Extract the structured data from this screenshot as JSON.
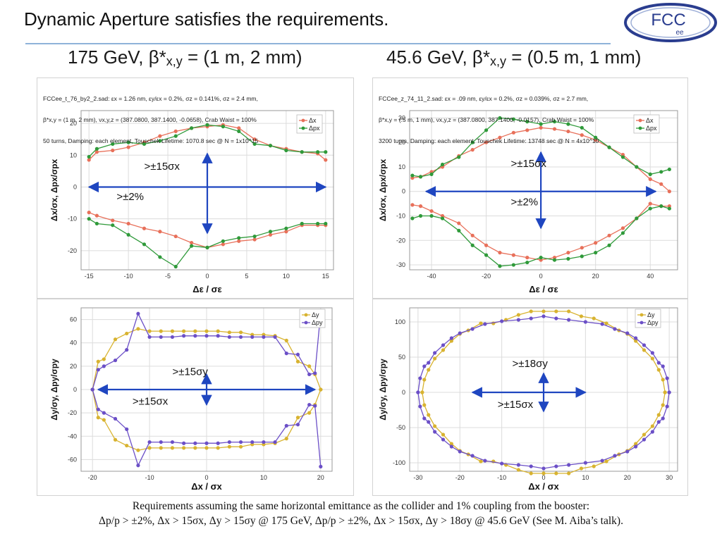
{
  "slide": {
    "title": "Dynamic Aperture satisfies the requirements.",
    "logo": {
      "main": "FCC",
      "sub": "ee"
    },
    "left_heading": {
      "pre": "175 GeV, β*",
      "sub": "x,y",
      "post": " = (1 m, 2 mm)"
    },
    "right_heading": {
      "pre": "45.6 GeV, β*",
      "sub": "x,y",
      "post": " = (0.5 m, 1 mm)"
    },
    "caption_line1": "Requirements assuming the same horizontal emittance as the collider and 1% coupling from the booster:",
    "caption_line2": "Δp/p > ±2%, Δx > 15σx, Δy > 15σy @ 175 GeV, Δp/p > ±2%, Δx > 15σx, Δy > 18σy @ 45.6 GeV (See M. Aiba’s talk).",
    "accent_color": "#1f46c0",
    "red_color": "#e8705a",
    "green_color": "#2f9a3a",
    "gold_color": "#d8b330",
    "purple_color": "#6b4fc7"
  },
  "chart_data": [
    {
      "type": "scatter",
      "name_id": "top-left",
      "header": [
        "FCCee_t_76_by2_2.sad: εx = 1.26 nm, εy/εx = 0.2%, σz = 0.141%, σz = 2.4 mm,",
        "β*x,y = (1 m, 2 mm), νx,y,z = (387.0800, 387.1400, -0.0658), Crab Waist = 100%",
        "50 turns, Damping: each element, Touschek Lifetime: 1070.8 sec @ N = 1x10^15"
      ],
      "xlabel": "Δε / σε",
      "ylabel": "Δx/σx, Δpx/σpx",
      "xlim": [
        -16,
        16
      ],
      "ylim": [
        -26,
        24
      ],
      "xticks": [
        -15,
        -10,
        -5,
        0,
        5,
        10,
        15
      ],
      "yticks": [
        -20,
        -10,
        0,
        10,
        20
      ],
      "legend": [
        "Δx",
        "Δpx"
      ],
      "series": [
        {
          "name": "Δx",
          "color": "red",
          "x": [
            -15,
            -14,
            -12,
            -10,
            -8,
            -6,
            -4,
            -2,
            0,
            2,
            4,
            6,
            8,
            10,
            12,
            14,
            15
          ],
          "y": [
            8.5,
            11,
            11.5,
            12.5,
            14,
            16,
            17.5,
            18.5,
            19,
            19.5,
            18.5,
            15,
            13,
            12,
            11,
            10.5,
            8.5
          ]
        },
        {
          "name": "Δx",
          "color": "red",
          "x": [
            -15,
            -14,
            -12,
            -10,
            -8,
            -6,
            -4,
            -2,
            0,
            2,
            4,
            6,
            8,
            10,
            12,
            14,
            15
          ],
          "y": [
            -8,
            -9,
            -10.5,
            -11.5,
            -13,
            -14,
            -15.5,
            -17.5,
            -19,
            -18,
            -17,
            -16.5,
            -15,
            -14,
            -12,
            -12,
            -12
          ]
        },
        {
          "name": "Δpx",
          "color": "green",
          "x": [
            -15,
            -14,
            -12,
            -10,
            -8,
            -6,
            -4,
            -2,
            0,
            2,
            4,
            6,
            8,
            10,
            12,
            14,
            15
          ],
          "y": [
            9.5,
            12,
            13.5,
            14,
            13.5,
            14.5,
            16,
            18.5,
            19.5,
            19,
            17.5,
            13.5,
            13,
            11.5,
            11,
            11,
            11
          ]
        },
        {
          "name": "Δpx",
          "color": "green",
          "x": [
            -15,
            -14,
            -12,
            -10,
            -8,
            -6,
            -4,
            -2,
            0,
            2,
            4,
            6,
            8,
            10,
            12,
            14,
            15
          ],
          "y": [
            -10,
            -11.5,
            -12,
            -15,
            -18,
            -22,
            -25,
            -18.5,
            -19,
            -17,
            -16,
            -15.5,
            -14,
            -13,
            -11.5,
            -11.5,
            -11.5
          ]
        }
      ],
      "annotations": [
        ">±15σx",
        ">±2%"
      ]
    },
    {
      "type": "scatter",
      "name_id": "top-right",
      "header": [
        "FCCee_z_74_11_2.sad: εx = .09 nm, εy/εx = 0.2%, σz = 0.039%, σz = 2.7 mm,",
        "β*x,y = (.5 m, 1 mm), νx,y,z = (387.0800, 387.1400, -0.0157), Crab Waist = 100%",
        "3200 turns, Damping: each element, Touschek Lifetime: 13748 sec @ N = 4x10^10"
      ],
      "xlabel": "Δε / σε",
      "ylabel": "Δx/σx, Δpx/σpx",
      "xlim": [
        -48,
        50
      ],
      "ylim": [
        -32,
        33
      ],
      "xticks": [
        -40,
        -20,
        0,
        20,
        40
      ],
      "yticks": [
        -30,
        -20,
        -10,
        0,
        10,
        20,
        30
      ],
      "legend": [
        "Δx",
        "Δpx"
      ],
      "series": [
        {
          "name": "Δx",
          "color": "red",
          "x": [
            -47,
            -44,
            -40,
            -36,
            -30,
            -25,
            -20,
            -15,
            -10,
            -5,
            0,
            5,
            10,
            15,
            20,
            25,
            30,
            35,
            40,
            44,
            47
          ],
          "y": [
            5.5,
            6,
            8,
            10,
            14.5,
            17,
            20,
            22,
            24,
            25,
            26,
            25.5,
            24.5,
            23,
            21,
            18,
            15,
            10,
            5,
            3,
            0
          ]
        },
        {
          "name": "Δx",
          "color": "red",
          "x": [
            -47,
            -44,
            -40,
            -36,
            -30,
            -25,
            -20,
            -15,
            -10,
            -5,
            0,
            5,
            10,
            15,
            20,
            25,
            30,
            35,
            40,
            44,
            47
          ],
          "y": [
            -5.5,
            -6,
            -8,
            -10,
            -13,
            -18,
            -22,
            -25,
            -26,
            -27,
            -28,
            -27,
            -25,
            -23,
            -21,
            -18,
            -15,
            -11,
            -5,
            -6,
            -6
          ]
        },
        {
          "name": "Δpx",
          "color": "green",
          "x": [
            -47,
            -44,
            -40,
            -36,
            -30,
            -25,
            -20,
            -15,
            -10,
            -5,
            0,
            5,
            10,
            15,
            20,
            25,
            30,
            35,
            40,
            44,
            47
          ],
          "y": [
            6.5,
            6,
            7,
            11,
            14,
            20,
            25,
            30,
            29.5,
            28.5,
            27.5,
            28.5,
            27.5,
            26,
            22,
            18,
            14,
            10,
            7,
            8,
            9
          ]
        },
        {
          "name": "Δpx",
          "color": "green",
          "x": [
            -47,
            -44,
            -40,
            -36,
            -30,
            -25,
            -20,
            -15,
            -10,
            -5,
            0,
            5,
            10,
            15,
            20,
            25,
            30,
            35,
            40,
            44,
            47
          ],
          "y": [
            -11,
            -10,
            -10,
            -11,
            -16,
            -22,
            -26,
            -30.5,
            -30,
            -29,
            -27,
            -28,
            -27.5,
            -26.5,
            -25,
            -22,
            -17,
            -11,
            -7,
            -6,
            -7
          ]
        }
      ],
      "annotations": [
        ">±15σx",
        ">±2%"
      ]
    },
    {
      "type": "scatter",
      "name_id": "bottom-left",
      "xlabel": "Δx / σx",
      "ylabel": "Δy/σy, Δpy/σpy",
      "xlim": [
        -22,
        22
      ],
      "ylim": [
        -70,
        70
      ],
      "xticks": [
        -20,
        -10,
        0,
        10,
        20
      ],
      "yticks": [
        -60,
        -40,
        -20,
        0,
        20,
        40,
        60
      ],
      "legend": [
        "Δy",
        "Δpy"
      ],
      "series": [
        {
          "name": "Δy",
          "color": "gold",
          "x": [
            -20,
            -19,
            -18,
            -16,
            -14,
            -12,
            -10,
            -8,
            -6,
            -4,
            -2,
            0,
            2,
            4,
            6,
            8,
            10,
            12,
            14,
            16,
            18,
            19,
            20
          ],
          "y": [
            0,
            24,
            26,
            43,
            48,
            52,
            50,
            50,
            50,
            50,
            50,
            50,
            50,
            49,
            49,
            47,
            47,
            46,
            42,
            24,
            20,
            13,
            0
          ]
        },
        {
          "name": "Δy",
          "color": "gold",
          "x": [
            -20,
            -19,
            -18,
            -16,
            -14,
            -12,
            -10,
            -8,
            -6,
            -4,
            -2,
            0,
            2,
            4,
            6,
            8,
            10,
            12,
            14,
            16,
            18,
            19,
            20
          ],
          "y": [
            0,
            -24,
            -26,
            -43,
            -48,
            -52,
            -50,
            -50,
            -50,
            -50,
            -50,
            -50,
            -50,
            -49,
            -49,
            -47,
            -47,
            -46,
            -42,
            -24,
            -20,
            -13,
            0
          ]
        },
        {
          "name": "Δpy",
          "color": "purple",
          "x": [
            -20,
            -19,
            -18,
            -16,
            -14,
            -12,
            -10,
            -8,
            -6,
            -4,
            -2,
            0,
            2,
            4,
            6,
            8,
            10,
            12,
            14,
            16,
            18,
            19,
            20
          ],
          "y": [
            0,
            17,
            20,
            25,
            34,
            65,
            45,
            45,
            45,
            46,
            46,
            46,
            46,
            45,
            45,
            45,
            45,
            45,
            31,
            30,
            13,
            14,
            66
          ]
        },
        {
          "name": "Δpy",
          "color": "purple",
          "x": [
            -20,
            -19,
            -18,
            -16,
            -14,
            -12,
            -10,
            -8,
            -6,
            -4,
            -2,
            0,
            2,
            4,
            6,
            8,
            10,
            12,
            14,
            16,
            18,
            19,
            20
          ],
          "y": [
            0,
            -17,
            -20,
            -25,
            -34,
            -65,
            -45,
            -45,
            -45,
            -46,
            -46,
            -46,
            -46,
            -45,
            -45,
            -45,
            -45,
            -45,
            -31,
            -30,
            -13,
            -14,
            -66
          ]
        }
      ],
      "annotations": [
        ">±15σy",
        ">±15σx"
      ]
    },
    {
      "type": "scatter",
      "name_id": "bottom-right",
      "xlabel": "Δx / σx",
      "ylabel": "Δy/σy, Δpy/σpy",
      "xlim": [
        -32,
        32
      ],
      "ylim": [
        -112,
        120
      ],
      "xticks": [
        -30,
        -20,
        -10,
        0,
        10,
        20,
        30
      ],
      "yticks": [
        -100,
        -50,
        0,
        50,
        100
      ],
      "legend": [
        "Δy",
        "Δpy"
      ],
      "series": [
        {
          "name": "Δy",
          "color": "gold",
          "x": [
            -29,
            -28.5,
            -27.5,
            -26,
            -24,
            -22,
            -20,
            -18,
            -15,
            -12,
            -9,
            -6,
            -3,
            0,
            3,
            6,
            9,
            12,
            15,
            18,
            20,
            22,
            24,
            26,
            27.5,
            28.5,
            29
          ],
          "y": [
            0,
            18,
            32,
            48,
            60,
            73,
            83,
            88,
            98,
            98,
            103,
            110,
            115,
            115,
            115,
            115,
            108,
            105,
            98,
            88,
            83,
            73,
            60,
            48,
            32,
            18,
            0
          ]
        },
        {
          "name": "Δy",
          "color": "gold",
          "x": [
            -29,
            -28.5,
            -27.5,
            -26,
            -24,
            -22,
            -20,
            -18,
            -15,
            -12,
            -9,
            -6,
            -3,
            0,
            3,
            6,
            9,
            12,
            15,
            18,
            20,
            22,
            24,
            26,
            27.5,
            28.5,
            29
          ],
          "y": [
            0,
            -18,
            -32,
            -48,
            -60,
            -73,
            -83,
            -88,
            -98,
            -98,
            -103,
            -110,
            -115,
            -115,
            -115,
            -115,
            -108,
            -105,
            -98,
            -88,
            -83,
            -73,
            -60,
            -48,
            -32,
            -18,
            0
          ]
        },
        {
          "name": "Δpy",
          "color": "purple",
          "x": [
            -30,
            -29.5,
            -28.5,
            -27.5,
            -26,
            -24,
            -22,
            -20,
            -17,
            -14,
            -10,
            -6,
            -3,
            0,
            3,
            6,
            10,
            14,
            17,
            20,
            22,
            24,
            26,
            27.5,
            28.5,
            29.5,
            30
          ],
          "y": [
            0,
            20,
            37,
            42,
            56,
            67,
            77,
            84,
            90,
            97,
            101,
            103,
            105,
            108,
            105,
            103,
            100,
            97,
            90,
            84,
            77,
            67,
            56,
            42,
            37,
            20,
            0
          ]
        },
        {
          "name": "Δpy",
          "color": "purple",
          "x": [
            -30,
            -29.5,
            -28.5,
            -27.5,
            -26,
            -24,
            -22,
            -20,
            -17,
            -14,
            -10,
            -6,
            -3,
            0,
            3,
            6,
            10,
            14,
            17,
            20,
            22,
            24,
            26,
            27.5,
            28.5,
            29.5,
            30
          ],
          "y": [
            0,
            -20,
            -37,
            -42,
            -56,
            -67,
            -77,
            -84,
            -90,
            -97,
            -101,
            -103,
            -105,
            -108,
            -105,
            -103,
            -100,
            -97,
            -90,
            -84,
            -77,
            -67,
            -56,
            -42,
            -37,
            -20,
            0
          ]
        }
      ],
      "annotations": [
        ">±18σy",
        ">±15σx"
      ]
    }
  ]
}
